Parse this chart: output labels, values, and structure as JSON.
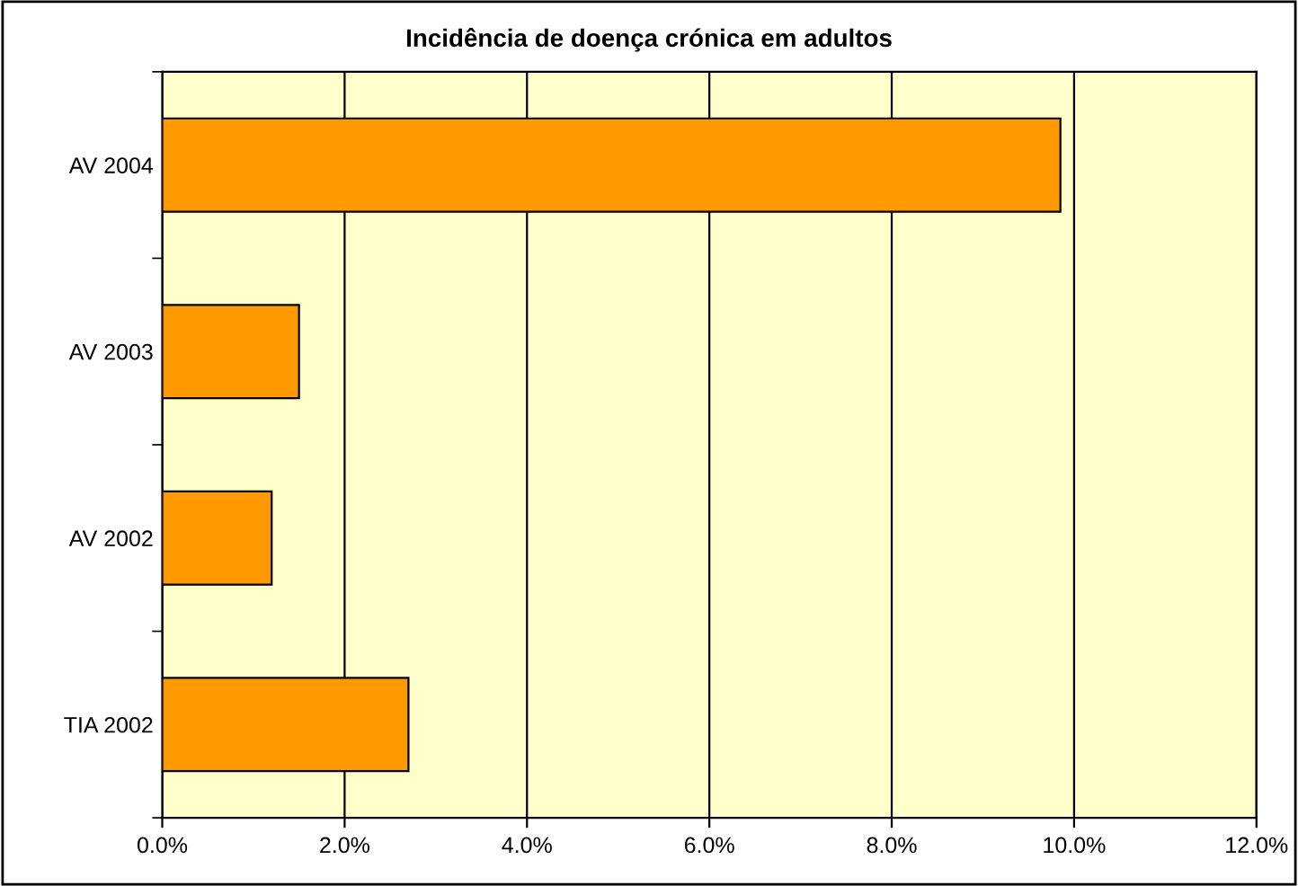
{
  "chart_data": {
    "type": "bar",
    "orientation": "horizontal",
    "title": "Incidência de doença crónica em adultos",
    "categories": [
      "AV 2004",
      "AV 2003",
      "AV 2002",
      "TIA 2002"
    ],
    "series": [
      {
        "color": "#ff9900",
        "values": [
          9.85,
          1.5,
          1.2,
          2.7
        ]
      }
    ],
    "xlim": [
      0,
      12
    ],
    "xticks": [
      {
        "value": 0,
        "label": "0.0%"
      },
      {
        "value": 2,
        "label": "2.0%"
      },
      {
        "value": 4,
        "label": "4.0%"
      },
      {
        "value": 6,
        "label": "6.0%"
      },
      {
        "value": 8,
        "label": "8.0%"
      },
      {
        "value": 10,
        "label": "10.0%"
      },
      {
        "value": 12,
        "label": "12.0%"
      }
    ],
    "grid": "x"
  }
}
